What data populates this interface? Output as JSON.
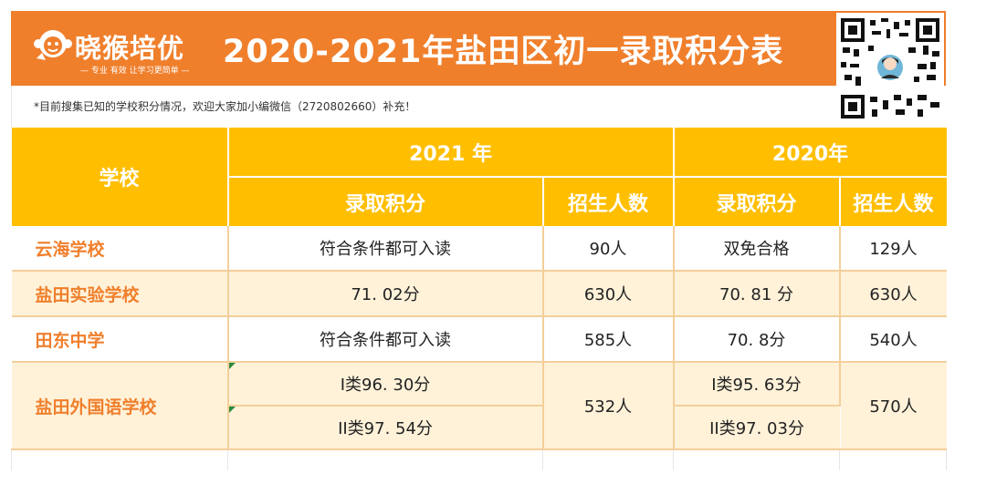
{
  "header": {
    "brand_name": "晓猴培优",
    "brand_slogan": "— 专业 有效 让学习更简单 —",
    "title": "2020-2021年盐田区初一录取积分表",
    "note": "*目前搜集已知的学校积分情况，欢迎大家加小编微信（2720802660）补充！"
  },
  "table": {
    "col_school": "学校",
    "year_2021": "2021 年",
    "year_2020": "2020年",
    "sub_score": "录取积分",
    "sub_count": "招生人数",
    "rows": [
      {
        "school": "云海学校",
        "score_2021": "符合条件都可入读",
        "count_2021": "90人",
        "score_2020": "双免合格",
        "count_2020": "129人"
      },
      {
        "school": "盐田实验学校",
        "score_2021": "71. 02分",
        "count_2021": "630人",
        "score_2020": "70. 81 分",
        "count_2020": "630人"
      },
      {
        "school": "田东中学",
        "score_2021": "符合条件都可入读",
        "count_2021": "585人",
        "score_2020": "70. 8分",
        "count_2020": "540人"
      },
      {
        "school": "盐田外国语学校",
        "score_2021_a": "I类96. 30分",
        "score_2021_b": "II类97. 54分",
        "count_2021": "532人",
        "score_2020_a": "I类95. 63分",
        "score_2020_b": "II类97. 03分",
        "count_2020": "570人"
      }
    ]
  },
  "colors": {
    "header_orange": "#f07f2c",
    "table_header_yellow": "#ffbf00",
    "cream_row": "#fff2d9",
    "school_text": "#f07f2c"
  },
  "icons": [
    "monkey-logo-icon",
    "qr-code-icon"
  ]
}
